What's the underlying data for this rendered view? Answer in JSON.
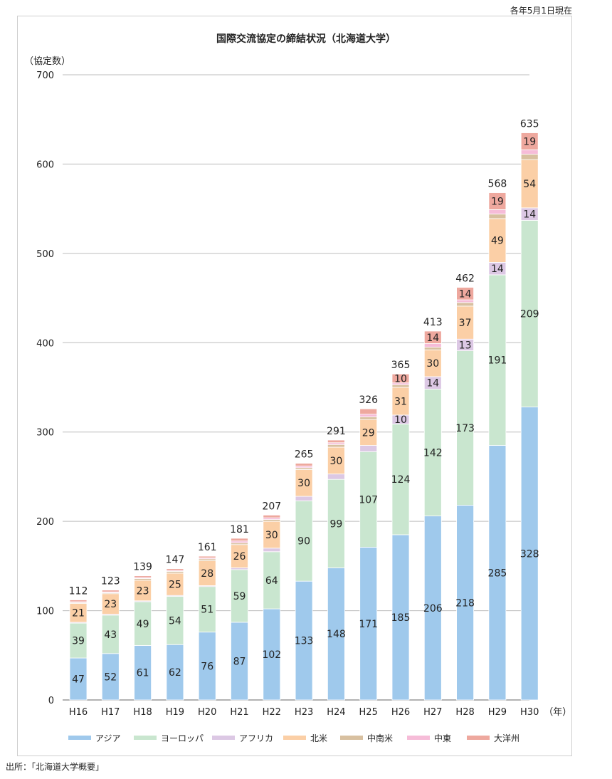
{
  "note": "各年5月1日現在",
  "source": "出所：「北海道大学概要」",
  "chart_data": {
    "type": "bar",
    "stacked": true,
    "title": "国際交流協定の締結状況（北海道大学）",
    "ylabel": "（協定数）",
    "xlabel": "（年）",
    "ylim": [
      0,
      700
    ],
    "yticks": [
      0,
      100,
      200,
      300,
      400,
      500,
      600,
      700
    ],
    "grid": true,
    "legend_position": "bottom",
    "categories": [
      "H16",
      "H17",
      "H18",
      "H19",
      "H20",
      "H21",
      "H22",
      "H23",
      "H24",
      "H25",
      "H26",
      "H27",
      "H28",
      "H29",
      "H30"
    ],
    "totals": [
      112,
      123,
      139,
      147,
      161,
      181,
      207,
      265,
      291,
      326,
      365,
      413,
      462,
      568,
      635
    ],
    "series": [
      {
        "name": "アジア",
        "color": "#9fc9ec",
        "values": [
          47,
          52,
          61,
          62,
          76,
          87,
          102,
          133,
          148,
          171,
          185,
          206,
          218,
          285,
          328
        ],
        "labeled": true
      },
      {
        "name": "ヨーロッパ",
        "color": "#c9e6cf",
        "values": [
          39,
          43,
          49,
          54,
          51,
          59,
          64,
          90,
          99,
          107,
          124,
          142,
          173,
          191,
          209
        ],
        "labeled": true
      },
      {
        "name": "アフリカ",
        "color": "#dcc8e4",
        "values": [
          1,
          1,
          1,
          1,
          1,
          2,
          4,
          5,
          6,
          7,
          10,
          14,
          13,
          14,
          14
        ],
        "labeled": [
          false,
          false,
          false,
          false,
          false,
          false,
          false,
          false,
          false,
          false,
          true,
          true,
          true,
          true,
          true
        ]
      },
      {
        "name": "北米",
        "color": "#fbcfa6",
        "values": [
          21,
          23,
          23,
          25,
          28,
          26,
          30,
          30,
          30,
          29,
          31,
          30,
          37,
          49,
          54
        ],
        "labeled": true
      },
      {
        "name": "中南米",
        "color": "#d8c0a0",
        "values": [
          1,
          1,
          2,
          2,
          2,
          2,
          2,
          2,
          3,
          3,
          3,
          3,
          4,
          5,
          6
        ],
        "labeled": false
      },
      {
        "name": "中東",
        "color": "#f6bcd8",
        "values": [
          1,
          1,
          1,
          1,
          1,
          2,
          2,
          2,
          2,
          3,
          2,
          4,
          3,
          5,
          5
        ],
        "labeled": false
      },
      {
        "name": "大洋州",
        "color": "#eea89e",
        "values": [
          2,
          2,
          2,
          2,
          2,
          3,
          3,
          3,
          3,
          6,
          10,
          14,
          14,
          19,
          19
        ],
        "labeled": [
          false,
          false,
          false,
          false,
          false,
          false,
          false,
          false,
          false,
          false,
          true,
          true,
          true,
          true,
          true
        ]
      }
    ]
  }
}
